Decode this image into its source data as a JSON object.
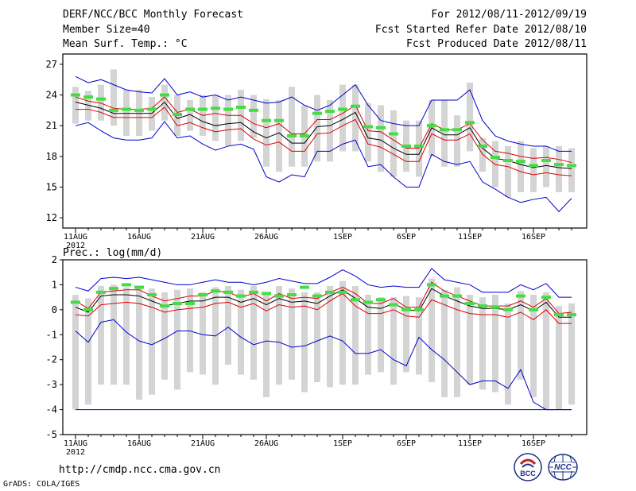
{
  "header": {
    "title": "DERF/NCC/BCC Monthly Forecast",
    "member_size": "Member Size=40",
    "variable": "Mean Surf. Temp.: °C",
    "period": "For 2012/08/11-2012/09/19",
    "fcst_started": "Fcst Started Refer Date 2012/08/10",
    "fcst_produced": "Fcst Produced Date 2012/08/11"
  },
  "footer": {
    "url": "http://cmdp.ncc.cma.gov.cn",
    "grads": "GrADS: COLA/IGES",
    "logo1_text": "BCC",
    "logo2_text": "NCC"
  },
  "colors": {
    "box": "#d4d4d4",
    "median": "#44dd44",
    "mean": "#000000",
    "spread": "#dd0000",
    "extreme": "#0000cc",
    "floor": "#0000aa"
  },
  "chart_data": [
    {
      "type": "box",
      "title": "Mean Surf. Temp.: °C",
      "days": 40,
      "x_tick_labels": [
        "11AUG",
        "16AUG",
        "21AUG",
        "26AUG",
        "1SEP",
        "6SEP",
        "11SEP",
        "16SEP"
      ],
      "x_tick_day_index": [
        0,
        5,
        10,
        15,
        21,
        26,
        31,
        36
      ],
      "year_label": "2012",
      "ylim": [
        11,
        28
      ],
      "yticks": [
        12,
        15,
        18,
        21,
        24,
        27
      ],
      "ensemble_max": [
        25.8,
        25.2,
        25.5,
        25.0,
        24.5,
        24.3,
        24.2,
        25.6,
        24.0,
        24.3,
        23.8,
        24.0,
        23.5,
        23.8,
        23.5,
        23.2,
        23.3,
        23.8,
        23.0,
        22.5,
        23.0,
        24.0,
        25.0,
        23.0,
        21.5,
        21.2,
        21.0,
        21.0,
        23.5,
        23.5,
        23.5,
        24.5,
        21.5,
        20.0,
        19.5,
        19.2,
        19.0,
        19.0,
        18.5,
        18.5
      ],
      "mean_plus_sd": [
        23.8,
        23.4,
        23.2,
        22.7,
        22.6,
        22.6,
        22.7,
        23.8,
        22.3,
        22.6,
        22.0,
        22.2,
        22.0,
        22.0,
        21.2,
        20.8,
        21.2,
        20.2,
        20.2,
        21.6,
        21.6,
        22.2,
        23.0,
        20.5,
        20.4,
        19.6,
        18.8,
        18.8,
        21.2,
        20.6,
        20.6,
        21.2,
        19.6,
        18.5,
        18.3,
        18.0,
        17.8,
        17.9,
        17.7,
        17.4
      ],
      "mean": [
        23.3,
        23.0,
        22.7,
        22.2,
        22.2,
        22.2,
        22.2,
        23.3,
        21.7,
        22.1,
        21.4,
        21.0,
        21.2,
        21.3,
        20.4,
        19.8,
        20.3,
        19.3,
        19.3,
        20.9,
        21.0,
        21.6,
        22.3,
        19.8,
        19.6,
        18.8,
        18.2,
        18.2,
        20.8,
        20.1,
        20.1,
        20.8,
        18.8,
        17.8,
        17.6,
        17.2,
        16.9,
        17.1,
        16.9,
        16.8
      ],
      "mean_minus_sd": [
        22.6,
        22.6,
        22.3,
        21.8,
        21.8,
        21.8,
        21.8,
        22.8,
        21.0,
        21.3,
        20.8,
        20.4,
        20.6,
        20.7,
        19.7,
        19.1,
        19.4,
        18.5,
        18.5,
        20.2,
        20.3,
        21.0,
        21.6,
        19.2,
        18.9,
        18.2,
        17.5,
        17.5,
        20.2,
        19.6,
        19.6,
        20.2,
        18.2,
        17.2,
        17.0,
        16.5,
        16.2,
        16.4,
        16.2,
        16.1
      ],
      "ensemble_min": [
        21.0,
        21.3,
        20.5,
        19.8,
        19.6,
        19.6,
        19.8,
        21.4,
        19.8,
        20.0,
        19.2,
        18.6,
        19.0,
        19.2,
        18.7,
        16.0,
        15.5,
        16.2,
        16.0,
        18.5,
        18.5,
        19.2,
        19.6,
        17.0,
        17.2,
        16.0,
        15.0,
        15.0,
        18.2,
        17.5,
        17.2,
        17.5,
        15.5,
        14.8,
        14.0,
        13.5,
        13.8,
        14.0,
        12.6,
        13.9
      ],
      "box_top": [
        24.8,
        24.4,
        25.0,
        26.5,
        24.5,
        24.5,
        23.8,
        25.0,
        24.0,
        23.5,
        24.0,
        24.0,
        24.0,
        24.5,
        24.0,
        23.6,
        23.5,
        24.8,
        23.0,
        24.0,
        23.5,
        25.0,
        25.0,
        23.2,
        23.0,
        22.5,
        21.5,
        21.5,
        23.5,
        23.5,
        22.0,
        25.2,
        19.8,
        19.5,
        19.0,
        19.5,
        18.8,
        19.0,
        19.0,
        18.8
      ],
      "box_bottom": [
        21.2,
        21.5,
        21.5,
        21.0,
        20.0,
        20.0,
        20.5,
        21.5,
        20.0,
        20.5,
        20.0,
        19.5,
        19.0,
        19.5,
        19.8,
        17.0,
        16.5,
        17.0,
        17.0,
        17.5,
        17.5,
        18.5,
        18.5,
        17.5,
        16.5,
        16.0,
        16.5,
        16.0,
        18.0,
        17.0,
        17.0,
        18.5,
        16.5,
        15.0,
        14.0,
        14.5,
        14.5,
        15.0,
        14.5,
        14.5
      ],
      "median": [
        24.0,
        23.8,
        23.6,
        22.5,
        22.6,
        22.5,
        22.6,
        24.0,
        22.1,
        22.6,
        22.6,
        22.7,
        22.6,
        22.8,
        22.5,
        21.5,
        21.5,
        20.0,
        20.0,
        22.2,
        22.4,
        22.6,
        22.9,
        20.9,
        20.8,
        20.2,
        19.0,
        19.0,
        21.0,
        20.6,
        20.6,
        21.3,
        19.0,
        17.9,
        17.6,
        17.5,
        17.1,
        17.6,
        17.2,
        17.1
      ],
      "legend": []
    },
    {
      "type": "box",
      "title": "Prec.: log(mm/d)",
      "days": 40,
      "x_tick_labels": [
        "11AUG",
        "16AUG",
        "21AUG",
        "26AUG",
        "1SEP",
        "6SEP",
        "11SEP",
        "16SEP"
      ],
      "x_tick_day_index": [
        0,
        5,
        10,
        15,
        21,
        26,
        31,
        36
      ],
      "year_label": "2012",
      "ylim": [
        -5,
        2
      ],
      "yticks": [
        -5,
        -4,
        -3,
        -2,
        -1,
        0,
        1,
        2
      ],
      "floor_line": -4,
      "ensemble_max": [
        0.9,
        0.75,
        1.25,
        1.3,
        1.25,
        1.3,
        1.2,
        1.1,
        1.0,
        1.0,
        1.1,
        1.2,
        1.1,
        1.1,
        1.0,
        1.1,
        1.25,
        1.15,
        1.05,
        1.05,
        1.3,
        1.6,
        1.35,
        1.0,
        0.9,
        0.95,
        0.9,
        0.9,
        1.65,
        1.2,
        1.1,
        1.0,
        0.7,
        0.7,
        0.7,
        1.0,
        0.8,
        1.05,
        0.5,
        0.5
      ],
      "mean_plus_sd": [
        0.35,
        0.05,
        0.7,
        0.75,
        0.8,
        0.8,
        0.55,
        0.35,
        0.45,
        0.55,
        0.55,
        0.75,
        0.7,
        0.5,
        0.65,
        0.35,
        0.65,
        0.45,
        0.5,
        0.45,
        0.7,
        0.9,
        0.65,
        0.25,
        0.25,
        0.45,
        0.1,
        0.1,
        1.1,
        0.75,
        0.55,
        0.35,
        0.15,
        0.15,
        0.15,
        0.35,
        0.1,
        0.45,
        -0.15,
        -0.1
      ],
      "mean": [
        0.1,
        -0.1,
        0.55,
        0.6,
        0.6,
        0.55,
        0.35,
        0.15,
        0.25,
        0.35,
        0.35,
        0.5,
        0.5,
        0.3,
        0.45,
        0.2,
        0.45,
        0.3,
        0.35,
        0.25,
        0.55,
        0.8,
        0.45,
        0.1,
        0.05,
        0.25,
        0.0,
        -0.05,
        0.85,
        0.55,
        0.35,
        0.15,
        0.05,
        0.05,
        0.0,
        0.2,
        -0.05,
        0.3,
        -0.3,
        -0.3
      ],
      "mean_minus_sd": [
        -0.2,
        -0.25,
        0.2,
        0.25,
        0.3,
        0.25,
        0.1,
        -0.1,
        0.0,
        0.05,
        0.1,
        0.25,
        0.3,
        0.1,
        0.25,
        -0.05,
        0.2,
        0.1,
        0.15,
        0.0,
        0.35,
        0.65,
        0.15,
        -0.15,
        -0.15,
        0.0,
        -0.25,
        -0.3,
        0.4,
        0.2,
        0.0,
        -0.15,
        -0.2,
        -0.2,
        -0.3,
        -0.1,
        -0.4,
        0.0,
        -0.55,
        -0.55
      ],
      "ensemble_min": [
        -0.85,
        -1.3,
        -0.5,
        -0.4,
        -0.9,
        -1.25,
        -1.4,
        -1.15,
        -0.85,
        -0.85,
        -1.0,
        -1.05,
        -0.7,
        -1.1,
        -1.4,
        -1.25,
        -1.3,
        -1.5,
        -1.45,
        -1.25,
        -1.05,
        -1.25,
        -1.75,
        -1.75,
        -1.6,
        -2.0,
        -2.25,
        -1.1,
        -1.6,
        -2.0,
        -2.5,
        -3.0,
        -2.85,
        -2.85,
        -3.15,
        -2.4,
        -3.7,
        -4.0,
        -4.0,
        -4.0
      ],
      "box_top": [
        0.6,
        0.45,
        0.95,
        1.0,
        0.9,
        0.95,
        0.85,
        0.7,
        0.8,
        0.85,
        0.7,
        0.9,
        0.95,
        0.8,
        0.95,
        0.7,
        0.95,
        0.85,
        0.7,
        0.7,
        0.95,
        1.15,
        0.95,
        0.6,
        0.5,
        0.5,
        0.55,
        0.5,
        1.25,
        0.8,
        0.9,
        0.6,
        0.5,
        0.6,
        0.25,
        0.75,
        0.6,
        0.7,
        0.15,
        0.25
      ],
      "box_bottom": [
        -4.0,
        -3.8,
        -3.0,
        -3.0,
        -3.0,
        -3.6,
        -3.4,
        -2.8,
        -3.2,
        -2.5,
        -2.6,
        -3.0,
        -2.2,
        -2.6,
        -2.8,
        -3.5,
        -3.0,
        -2.8,
        -3.3,
        -2.9,
        -3.1,
        -3.0,
        -3.0,
        -2.6,
        -2.5,
        -3.0,
        -2.5,
        -2.6,
        -2.9,
        -3.5,
        -3.5,
        -3.0,
        -3.2,
        -3.3,
        -3.8,
        -2.8,
        -3.5,
        -4.0,
        -4.0,
        -3.8
      ],
      "median": [
        0.3,
        0.0,
        0.7,
        0.85,
        1.0,
        0.9,
        0.6,
        0.15,
        0.25,
        0.25,
        0.6,
        0.75,
        0.7,
        0.55,
        0.7,
        0.65,
        0.55,
        0.6,
        0.9,
        0.55,
        0.7,
        0.7,
        0.4,
        0.3,
        0.4,
        0.2,
        0.0,
        0.0,
        1.0,
        0.55,
        0.55,
        0.25,
        0.15,
        0.1,
        0.0,
        0.55,
        0.0,
        0.5,
        -0.2,
        -0.2
      ],
      "legend": []
    }
  ]
}
